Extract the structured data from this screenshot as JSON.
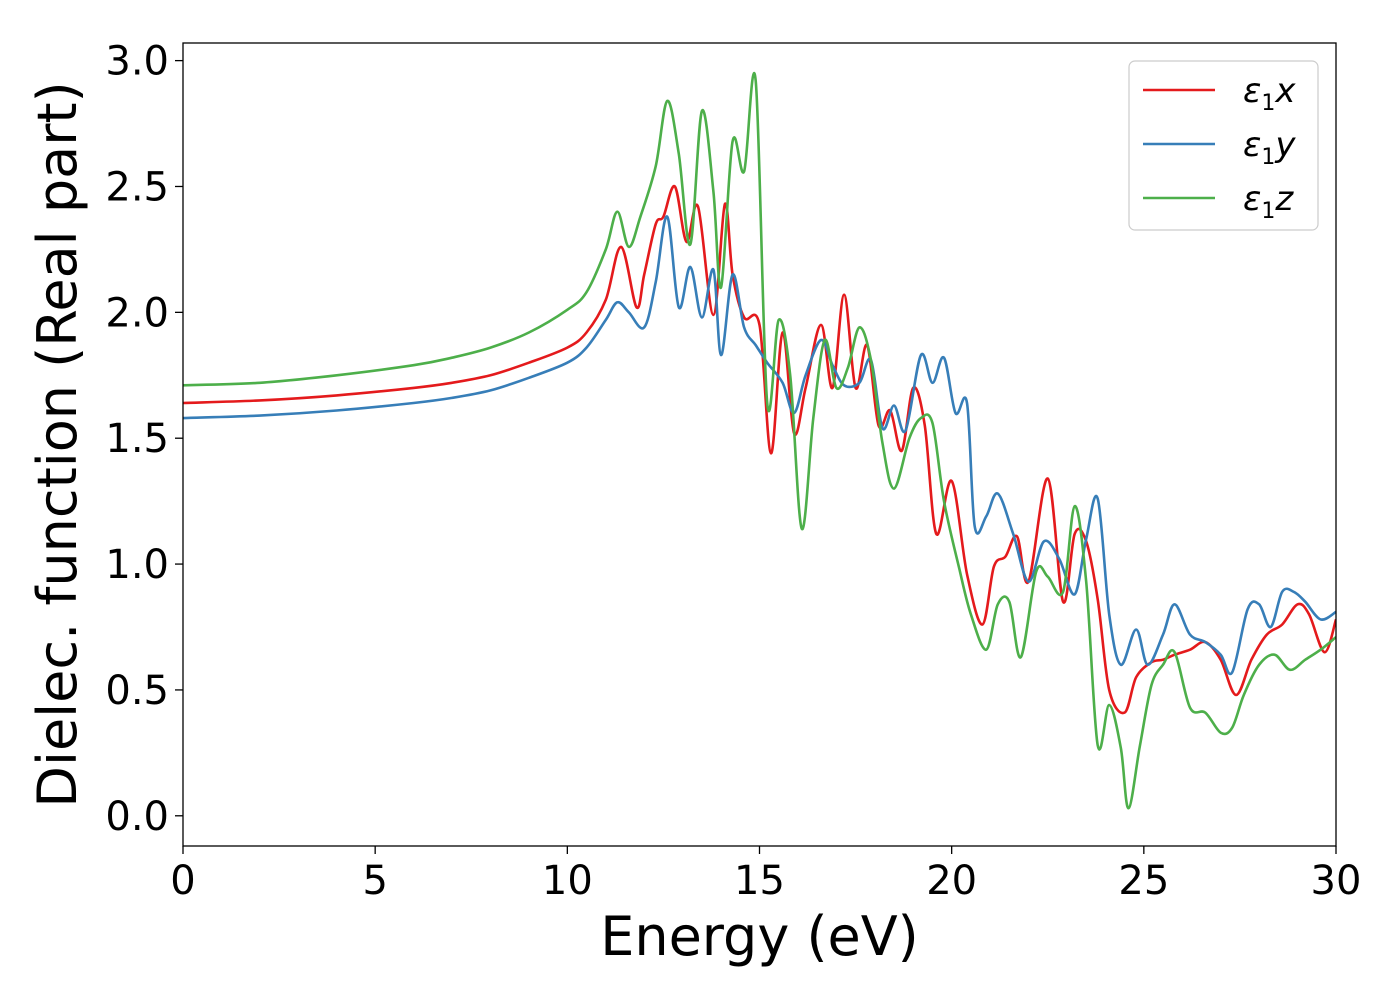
{
  "chart_data": {
    "type": "line",
    "title": "",
    "xlabel": "Energy (eV)",
    "ylabel": "Dielec. function (Real part)",
    "xlim": [
      0,
      30
    ],
    "ylim": [
      -0.12,
      3.07
    ],
    "xticks": [
      0,
      5,
      10,
      15,
      20,
      25,
      30
    ],
    "xtick_labels": [
      "0",
      "5",
      "10",
      "15",
      "20",
      "25",
      "30"
    ],
    "yticks": [
      0.0,
      0.5,
      1.0,
      1.5,
      2.0,
      2.5,
      3.0
    ],
    "ytick_labels": [
      "0.0",
      "0.5",
      "1.0",
      "1.5",
      "2.0",
      "2.5",
      "3.0"
    ],
    "grid": false,
    "legend_position": "top-right",
    "series": [
      {
        "name": "ε₁x",
        "legend": {
          "base": "ε",
          "sub": "1",
          "tail": "x"
        },
        "color": "#e41a1c",
        "x": [
          0,
          2,
          4,
          6,
          7,
          8,
          9,
          10,
          10.5,
          11,
          11.4,
          11.8,
          12,
          12.3,
          12.5,
          12.8,
          13.1,
          13.4,
          13.8,
          14.1,
          14.3,
          14.6,
          15,
          15.3,
          15.6,
          15.9,
          16.2,
          16.6,
          16.9,
          17.2,
          17.5,
          17.8,
          18.1,
          18.4,
          18.7,
          19,
          19.3,
          19.6,
          20,
          20.4,
          20.8,
          21.1,
          21.4,
          21.7,
          22,
          22.5,
          22.9,
          23.2,
          23.5,
          23.8,
          24.1,
          24.5,
          24.8,
          25.2,
          25.5,
          25.8,
          26.2,
          26.6,
          27,
          27.4,
          27.8,
          28.2,
          28.6,
          29,
          29.3,
          29.7,
          30
        ],
        "values": [
          1.64,
          1.65,
          1.67,
          1.7,
          1.72,
          1.75,
          1.8,
          1.86,
          1.92,
          2.05,
          2.26,
          2.02,
          2.15,
          2.35,
          2.38,
          2.5,
          2.28,
          2.42,
          1.99,
          2.43,
          2.15,
          1.98,
          1.95,
          1.44,
          1.92,
          1.52,
          1.7,
          1.95,
          1.7,
          2.07,
          1.7,
          1.87,
          1.55,
          1.61,
          1.45,
          1.7,
          1.55,
          1.12,
          1.33,
          0.96,
          0.76,
          0.99,
          1.03,
          1.11,
          0.93,
          1.34,
          0.85,
          1.12,
          1.09,
          0.86,
          0.5,
          0.41,
          0.55,
          0.61,
          0.62,
          0.64,
          0.66,
          0.69,
          0.62,
          0.48,
          0.62,
          0.72,
          0.76,
          0.84,
          0.8,
          0.65,
          0.78
        ]
      },
      {
        "name": "ε₁y",
        "legend": {
          "base": "ε",
          "sub": "1",
          "tail": "y"
        },
        "color": "#377eb8",
        "x": [
          0,
          2,
          4,
          6,
          7,
          8,
          9,
          10,
          10.5,
          11,
          11.3,
          11.6,
          12,
          12.3,
          12.6,
          12.9,
          13.2,
          13.5,
          13.8,
          14,
          14.3,
          14.6,
          14.9,
          15.2,
          15.6,
          15.9,
          16.2,
          16.6,
          16.9,
          17.2,
          17.6,
          17.9,
          18.2,
          18.5,
          18.8,
          19.2,
          19.5,
          19.8,
          20.1,
          20.4,
          20.6,
          20.9,
          21.2,
          21.6,
          22,
          22.4,
          22.8,
          23.2,
          23.5,
          23.8,
          24.1,
          24.4,
          24.8,
          25.1,
          25.5,
          25.8,
          26.2,
          26.6,
          27,
          27.3,
          27.7,
          28,
          28.3,
          28.6,
          28.9,
          29.2,
          29.6,
          30
        ],
        "values": [
          1.58,
          1.59,
          1.61,
          1.64,
          1.66,
          1.69,
          1.74,
          1.8,
          1.86,
          1.97,
          2.04,
          2.0,
          1.94,
          2.12,
          2.38,
          2.02,
          2.18,
          1.98,
          2.17,
          1.83,
          2.15,
          1.94,
          1.87,
          1.8,
          1.72,
          1.6,
          1.75,
          1.89,
          1.79,
          1.71,
          1.72,
          1.81,
          1.54,
          1.63,
          1.53,
          1.83,
          1.72,
          1.82,
          1.6,
          1.64,
          1.15,
          1.19,
          1.28,
          1.12,
          0.93,
          1.09,
          1.02,
          0.88,
          1.1,
          1.26,
          0.8,
          0.6,
          0.74,
          0.6,
          0.72,
          0.84,
          0.72,
          0.69,
          0.64,
          0.57,
          0.82,
          0.84,
          0.75,
          0.89,
          0.89,
          0.85,
          0.78,
          0.81
        ]
      },
      {
        "name": "ε₁z",
        "legend": {
          "base": "ε",
          "sub": "1",
          "tail": "z"
        },
        "color": "#4daf4a",
        "x": [
          0,
          2,
          4,
          6,
          7,
          8,
          9,
          10,
          10.5,
          11,
          11.3,
          11.6,
          11.9,
          12.3,
          12.6,
          12.9,
          13.2,
          13.5,
          13.8,
          14,
          14.3,
          14.6,
          14.9,
          15.2,
          15.5,
          15.8,
          16.1,
          16.4,
          16.7,
          17,
          17.3,
          17.6,
          17.9,
          18.2,
          18.5,
          18.9,
          19.2,
          19.5,
          19.8,
          20.2,
          20.5,
          20.9,
          21.2,
          21.5,
          21.8,
          22.2,
          22.5,
          22.9,
          23.2,
          23.5,
          23.8,
          24.1,
          24.4,
          24.6,
          24.9,
          25.2,
          25.5,
          25.8,
          26.2,
          26.6,
          27,
          27.3,
          27.6,
          28,
          28.4,
          28.8,
          29.2,
          29.6,
          30
        ],
        "values": [
          1.71,
          1.72,
          1.75,
          1.79,
          1.82,
          1.86,
          1.92,
          2.01,
          2.08,
          2.25,
          2.4,
          2.26,
          2.38,
          2.58,
          2.84,
          2.63,
          2.27,
          2.8,
          2.48,
          2.1,
          2.68,
          2.56,
          2.92,
          1.64,
          1.97,
          1.75,
          1.14,
          1.58,
          1.89,
          1.7,
          1.78,
          1.94,
          1.81,
          1.48,
          1.3,
          1.5,
          1.58,
          1.56,
          1.25,
          0.98,
          0.8,
          0.66,
          0.84,
          0.85,
          0.63,
          0.97,
          0.95,
          0.89,
          1.23,
          0.93,
          0.28,
          0.44,
          0.27,
          0.03,
          0.28,
          0.52,
          0.6,
          0.65,
          0.43,
          0.41,
          0.33,
          0.35,
          0.48,
          0.6,
          0.64,
          0.58,
          0.62,
          0.66,
          0.71
        ]
      }
    ]
  }
}
